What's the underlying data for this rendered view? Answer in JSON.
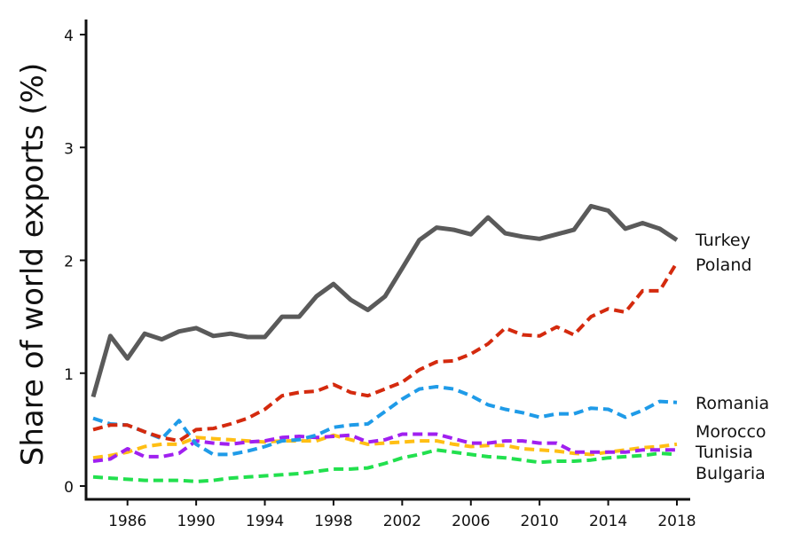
{
  "chart_data": {
    "type": "line",
    "title": "",
    "xlabel": "",
    "ylabel": "Share of world exports (%)",
    "xlim": [
      1983.5,
      2018.7
    ],
    "ylim": [
      0,
      4.1
    ],
    "xticks": [
      1986,
      1990,
      1994,
      1998,
      2002,
      2006,
      2010,
      2014,
      2018
    ],
    "yticks": [
      0,
      1,
      2,
      3,
      4
    ],
    "grid": false,
    "x": [
      1984,
      1985,
      1986,
      1987,
      1988,
      1989,
      1990,
      1991,
      1992,
      1993,
      1994,
      1995,
      1996,
      1997,
      1998,
      1999,
      2000,
      2001,
      2002,
      2003,
      2004,
      2005,
      2006,
      2007,
      2008,
      2009,
      2010,
      2011,
      2012,
      2013,
      2014,
      2015,
      2016,
      2017,
      2018
    ],
    "series": [
      {
        "name": "Turkey",
        "color": "#5a5a5a",
        "style": "solid",
        "values": [
          0.79,
          1.33,
          1.13,
          1.35,
          1.3,
          1.37,
          1.4,
          1.33,
          1.35,
          1.32,
          1.32,
          1.5,
          1.5,
          1.68,
          1.79,
          1.65,
          1.56,
          1.68,
          1.93,
          2.18,
          2.29,
          2.27,
          2.23,
          2.38,
          2.24,
          2.21,
          2.19,
          2.23,
          2.27,
          2.48,
          2.44,
          2.28,
          2.33,
          2.28,
          2.18
        ]
      },
      {
        "name": "Poland",
        "color": "#d42a0e",
        "style": "dashed",
        "values": [
          0.5,
          0.54,
          0.54,
          0.48,
          0.43,
          0.4,
          0.5,
          0.51,
          0.55,
          0.6,
          0.68,
          0.8,
          0.83,
          0.84,
          0.9,
          0.83,
          0.8,
          0.86,
          0.92,
          1.03,
          1.1,
          1.11,
          1.17,
          1.26,
          1.4,
          1.34,
          1.33,
          1.41,
          1.34,
          1.5,
          1.57,
          1.54,
          1.73,
          1.73,
          1.98
        ]
      },
      {
        "name": "Romania",
        "color": "#1f9be8",
        "style": "dashed",
        "values": [
          0.6,
          0.55,
          0.54,
          0.48,
          0.42,
          0.58,
          0.37,
          0.28,
          0.28,
          0.31,
          0.35,
          0.4,
          0.41,
          0.45,
          0.52,
          0.54,
          0.55,
          0.66,
          0.77,
          0.86,
          0.88,
          0.86,
          0.8,
          0.72,
          0.68,
          0.65,
          0.61,
          0.64,
          0.64,
          0.69,
          0.68,
          0.61,
          0.67,
          0.75,
          0.74
        ]
      },
      {
        "name": "Morocco",
        "color": "#a020f0",
        "style": "dashed",
        "values": [
          0.22,
          0.24,
          0.33,
          0.26,
          0.26,
          0.29,
          0.4,
          0.38,
          0.37,
          0.39,
          0.4,
          0.43,
          0.44,
          0.43,
          0.44,
          0.45,
          0.39,
          0.41,
          0.46,
          0.46,
          0.46,
          0.42,
          0.38,
          0.38,
          0.4,
          0.4,
          0.38,
          0.38,
          0.3,
          0.3,
          0.3,
          0.3,
          0.32,
          0.32,
          0.32
        ]
      },
      {
        "name": "Tunisia",
        "color": "#ffbf14",
        "style": "dashed",
        "values": [
          0.25,
          0.27,
          0.3,
          0.35,
          0.37,
          0.37,
          0.43,
          0.42,
          0.41,
          0.4,
          0.39,
          0.4,
          0.4,
          0.4,
          0.45,
          0.41,
          0.37,
          0.38,
          0.39,
          0.4,
          0.4,
          0.37,
          0.35,
          0.36,
          0.36,
          0.33,
          0.32,
          0.31,
          0.29,
          0.28,
          0.3,
          0.32,
          0.34,
          0.35,
          0.37
        ]
      },
      {
        "name": "Bulgaria",
        "color": "#22e04e",
        "style": "dashed",
        "values": [
          0.08,
          0.07,
          0.06,
          0.05,
          0.05,
          0.05,
          0.04,
          0.05,
          0.07,
          0.08,
          0.09,
          0.1,
          0.11,
          0.13,
          0.15,
          0.15,
          0.16,
          0.2,
          0.25,
          0.28,
          0.32,
          0.3,
          0.28,
          0.26,
          0.25,
          0.23,
          0.21,
          0.22,
          0.22,
          0.23,
          0.25,
          0.26,
          0.27,
          0.29,
          0.28
        ]
      }
    ],
    "series_labels_order": [
      "Turkey",
      "Poland",
      "Romania",
      "Morocco",
      "Tunisia",
      "Bulgaria"
    ]
  }
}
